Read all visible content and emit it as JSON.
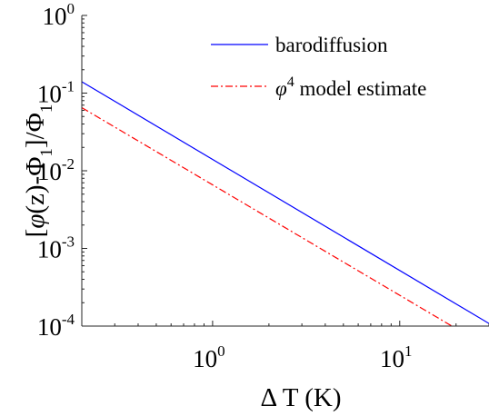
{
  "chart_data": {
    "type": "line",
    "xscale": "log",
    "yscale": "log",
    "xlim": [
      0.2,
      30
    ],
    "ylim": [
      0.0001,
      1
    ],
    "xlabel": "Δ T (K)",
    "ylabel": {
      "prefix": "[",
      "phi": "φ",
      "middle": "(z)-Φ",
      "sub1": "1",
      "close": "]/Φ",
      "sub2": "1"
    },
    "xticks": [
      {
        "value": 1,
        "base": "10",
        "exp": "0"
      },
      {
        "value": 10,
        "base": "10",
        "exp": "1"
      }
    ],
    "yticks": [
      {
        "value": 1,
        "base": "10",
        "exp": "0"
      },
      {
        "value": 0.1,
        "base": "10",
        "exp": "-1"
      },
      {
        "value": 0.01,
        "base": "10",
        "exp": "-2"
      },
      {
        "value": 0.001,
        "base": "10",
        "exp": "-3"
      },
      {
        "value": 0.0001,
        "base": "10",
        "exp": "-4"
      }
    ],
    "series": [
      {
        "name": "barodiffusion",
        "color": "#0000ff",
        "dash": "solid",
        "x": [
          0.2,
          30
        ],
        "y": [
          0.14,
          0.000108
        ]
      },
      {
        "name_phi": "φ",
        "name_exp": "4",
        "name_rest": " model estimate",
        "color": "#ff0000",
        "dash": "dashdot",
        "x": [
          0.2,
          19
        ],
        "y": [
          0.065,
          0.0001
        ]
      }
    ],
    "legend": "top-right",
    "grid": false
  }
}
